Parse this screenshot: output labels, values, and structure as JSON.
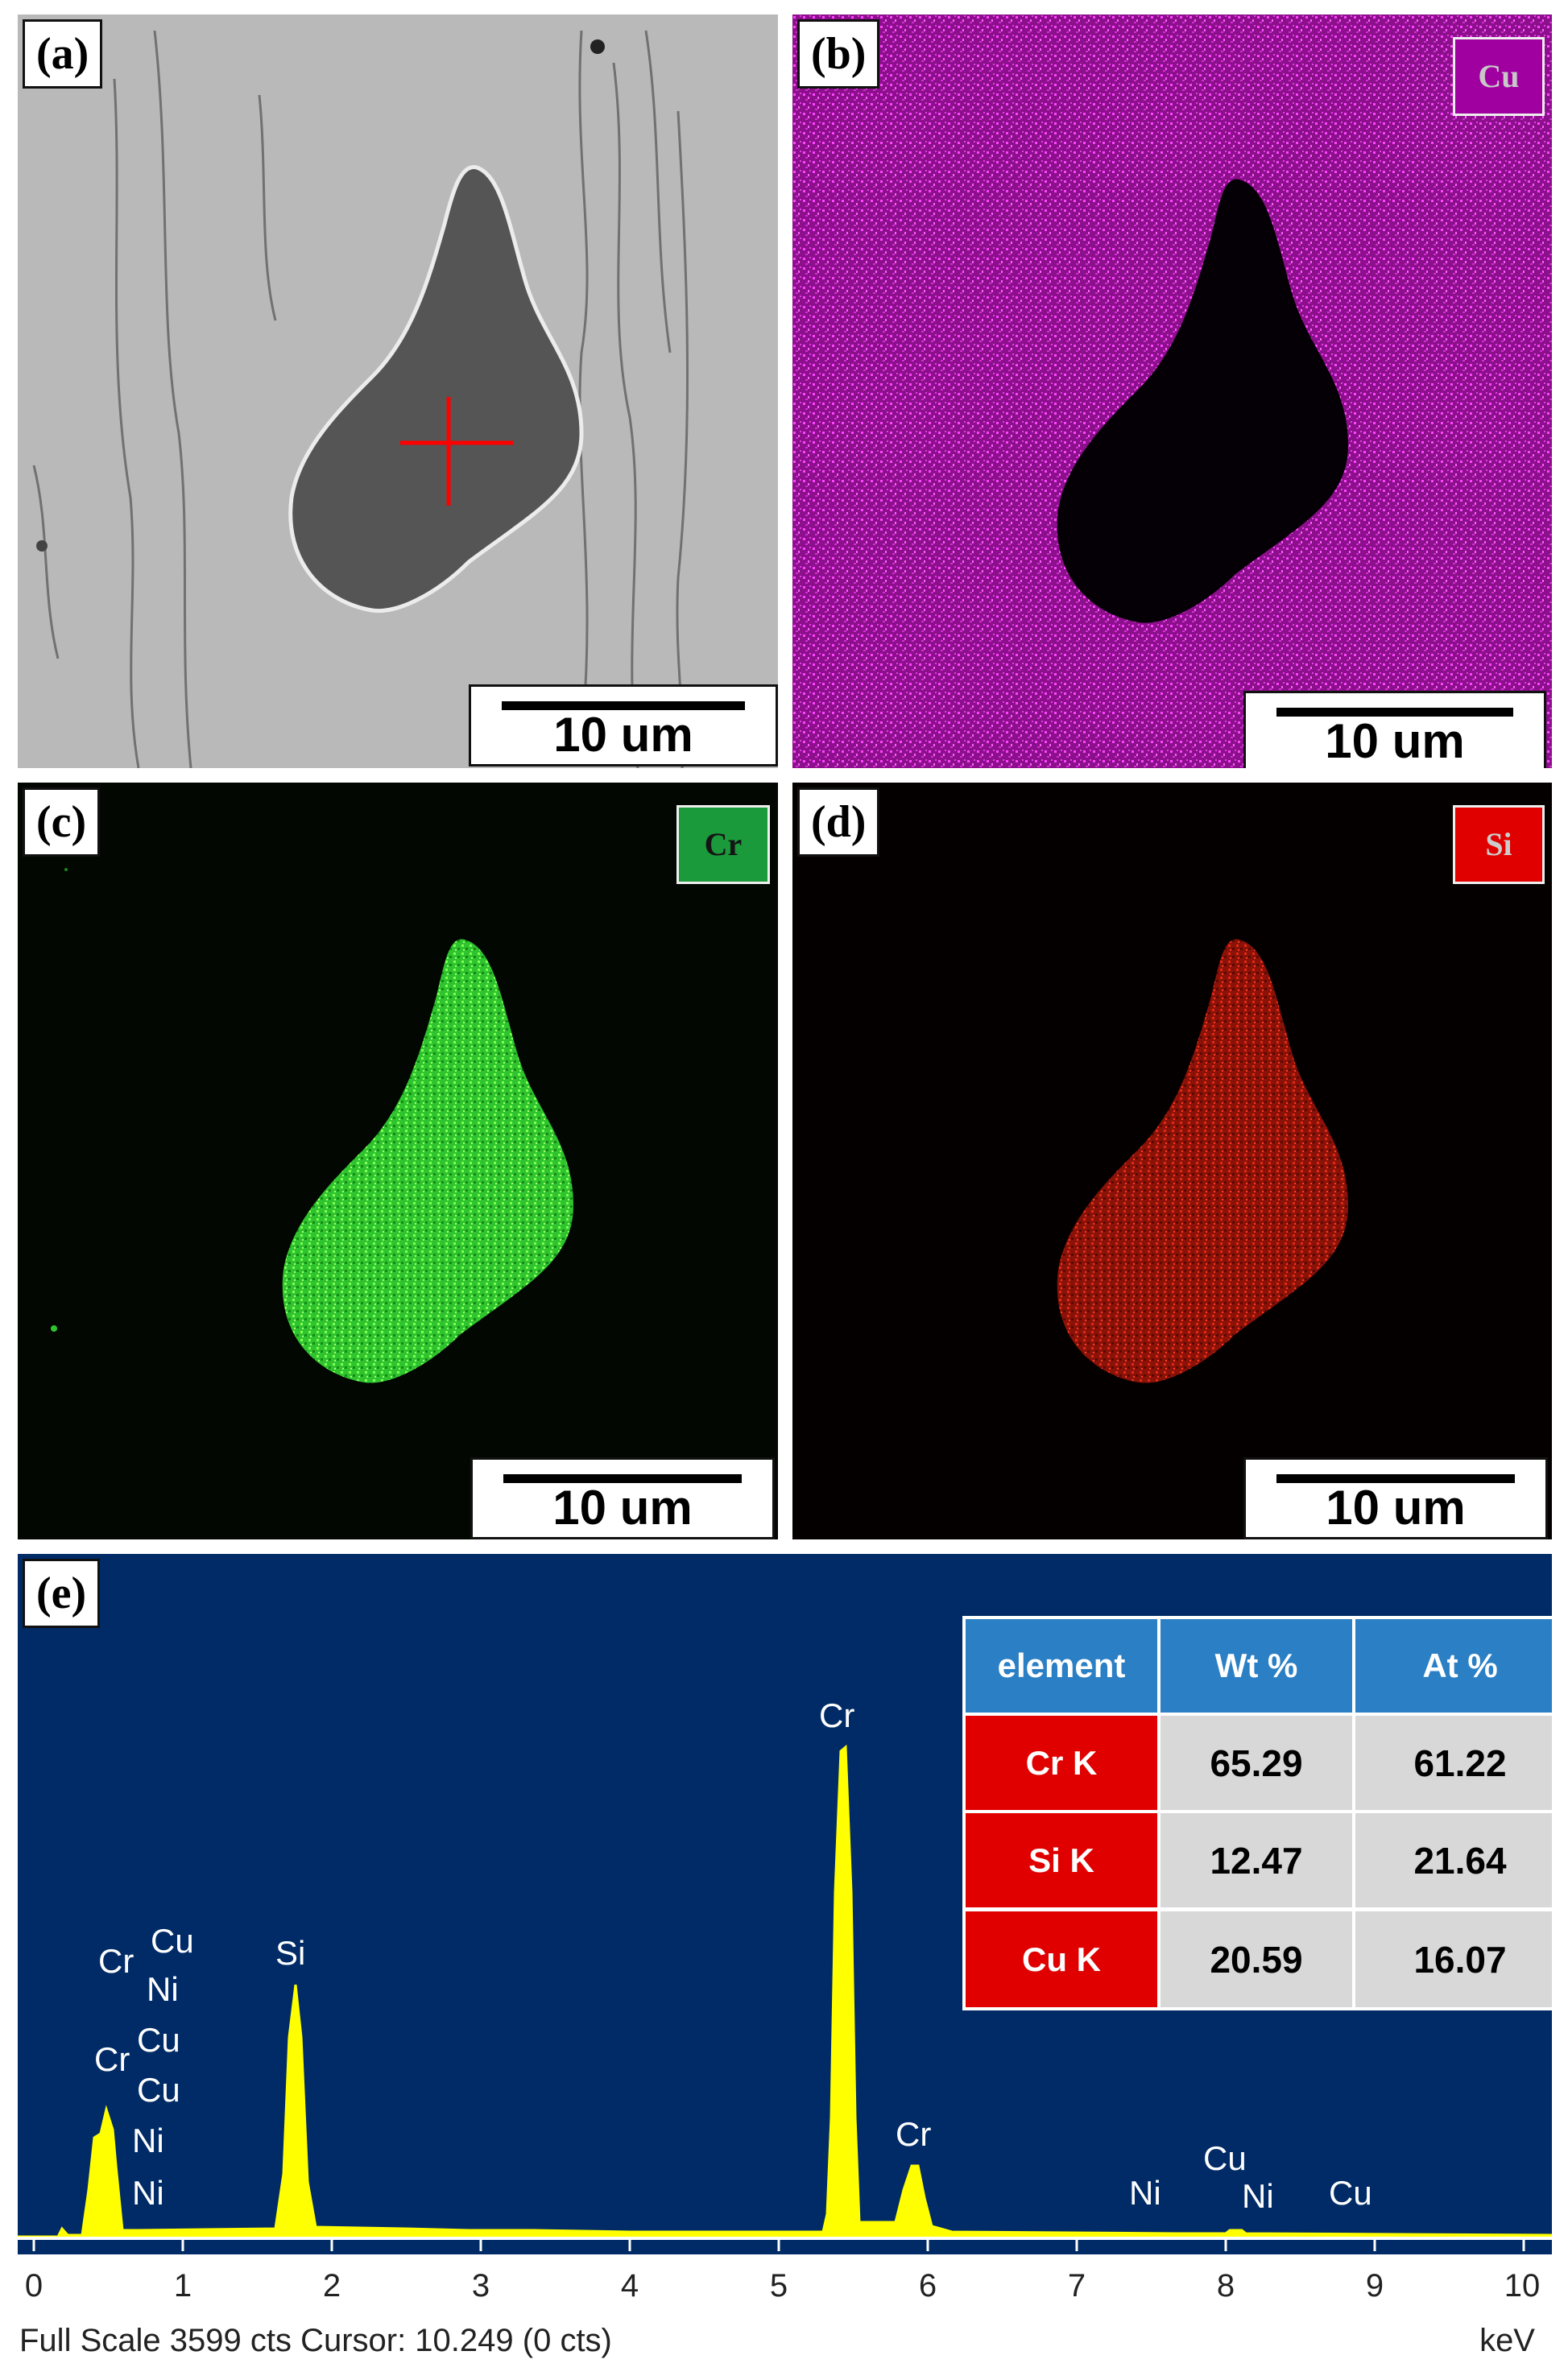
{
  "panels": {
    "a": {
      "label": "(a)",
      "scale_bar": "10 um"
    },
    "b": {
      "label": "(b)",
      "element": "Cu",
      "element_color": "#a000a0",
      "scale_bar": "10 um"
    },
    "c": {
      "label": "(c)",
      "element": "Cr",
      "element_color": "#1a9a3a",
      "scale_bar": "10 um"
    },
    "d": {
      "label": "(d)",
      "element": "Si",
      "element_color": "#e00000",
      "scale_bar": "10 um"
    },
    "e": {
      "label": "(e)"
    }
  },
  "spectrum": {
    "peak_labels": [
      "Cr",
      "Cu",
      "Ni",
      "Cr",
      "Cu",
      "Cu",
      "Ni",
      "Ni",
      "Si",
      "Cr",
      "Cr",
      "Ni",
      "Cu",
      "Ni",
      "Cu"
    ],
    "x_ticks": [
      "0",
      "1",
      "2",
      "3",
      "4",
      "5",
      "6",
      "7",
      "8",
      "9",
      "10"
    ],
    "x_unit": "keV",
    "footer": "Full Scale 3599 cts Cursor: 10.249  (0 cts)",
    "colors": {
      "background": "#002b66",
      "peak": "#ffff00",
      "text": "#ffffff"
    }
  },
  "table": {
    "headers": [
      "element",
      "Wt  %",
      "At  %"
    ],
    "rows": [
      {
        "element": "Cr  K",
        "wt": "65.29",
        "at": "61.22"
      },
      {
        "element": "Si  K",
        "wt": "12.47",
        "at": "21.64"
      },
      {
        "element": "Cu K",
        "wt": "20.59",
        "at": "16.07"
      }
    ],
    "colors": {
      "header": "#2b7fc4",
      "element_cell": "#e00000",
      "value_cell": "#d8d8d8"
    }
  }
}
